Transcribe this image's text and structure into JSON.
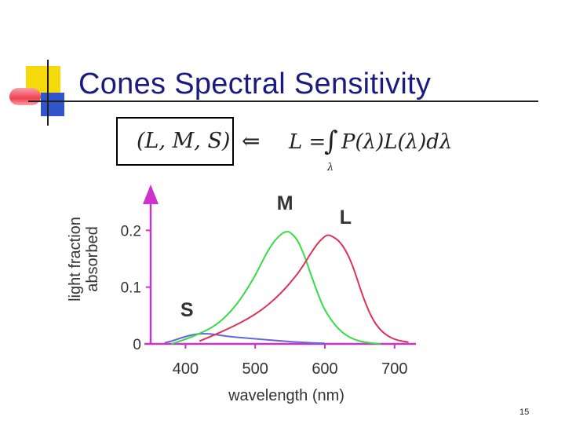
{
  "slide": {
    "title": "Cones Spectral Sensitivity",
    "page_number": "15"
  },
  "formula": {
    "tuple": "(L, M, S)",
    "arrow": "⇐",
    "lhs": "L =",
    "integral": "∫",
    "integrand": "P(λ)L(λ)dλ",
    "subscript": "λ"
  },
  "colors": {
    "title": "#1a1a80",
    "axis": "#cc33cc",
    "S": "#6666dd",
    "M": "#33dd44",
    "L": "#dd3355",
    "deco_yellow": "#f5d90a",
    "deco_red": "#f04050",
    "deco_blue": "#3355cc"
  },
  "chart_data": {
    "type": "line",
    "xlabel": "wavelength (nm)",
    "ylabel": "light fraction absorbed",
    "xlim": [
      350,
      725
    ],
    "ylim": [
      0,
      0.26
    ],
    "xticks": [
      400,
      500,
      600,
      700
    ],
    "yticks": [
      {
        "value": 0,
        "label": "0"
      },
      {
        "value": 0.1,
        "label": "0.1"
      },
      {
        "value": 0.2,
        "label": "0.2"
      }
    ],
    "series": [
      {
        "name": "S",
        "color": "#6666dd",
        "x": [
          370,
          380,
          390,
          400,
          410,
          420,
          430,
          440,
          450,
          470,
          500,
          530,
          560,
          600
        ],
        "y": [
          0.002,
          0.005,
          0.009,
          0.013,
          0.016,
          0.018,
          0.018,
          0.017,
          0.015,
          0.012,
          0.009,
          0.006,
          0.003,
          0.001
        ]
      },
      {
        "name": "M",
        "color": "#33dd44",
        "x": [
          380,
          400,
          420,
          440,
          460,
          480,
          500,
          510,
          520,
          530,
          540,
          545,
          550,
          560,
          570,
          580,
          590,
          600,
          620,
          640,
          660,
          680
        ],
        "y": [
          0.0,
          0.008,
          0.018,
          0.03,
          0.05,
          0.08,
          0.12,
          0.145,
          0.168,
          0.185,
          0.196,
          0.198,
          0.197,
          0.185,
          0.158,
          0.122,
          0.088,
          0.058,
          0.024,
          0.008,
          0.002,
          0.0
        ]
      },
      {
        "name": "L",
        "color": "#dd3355",
        "x": [
          420,
          440,
          460,
          480,
          500,
          520,
          540,
          560,
          570,
          580,
          590,
          600,
          605,
          610,
          620,
          630,
          640,
          650,
          660,
          670,
          680,
          690,
          700,
          710,
          720
        ],
        "y": [
          0.005,
          0.015,
          0.026,
          0.038,
          0.052,
          0.07,
          0.093,
          0.122,
          0.14,
          0.16,
          0.178,
          0.19,
          0.192,
          0.19,
          0.182,
          0.165,
          0.138,
          0.1,
          0.066,
          0.04,
          0.024,
          0.014,
          0.008,
          0.005,
          0.003
        ]
      }
    ],
    "annotations": [
      {
        "text": "S",
        "series": "S"
      },
      {
        "text": "M",
        "series": "M"
      },
      {
        "text": "L",
        "series": "L"
      }
    ]
  }
}
